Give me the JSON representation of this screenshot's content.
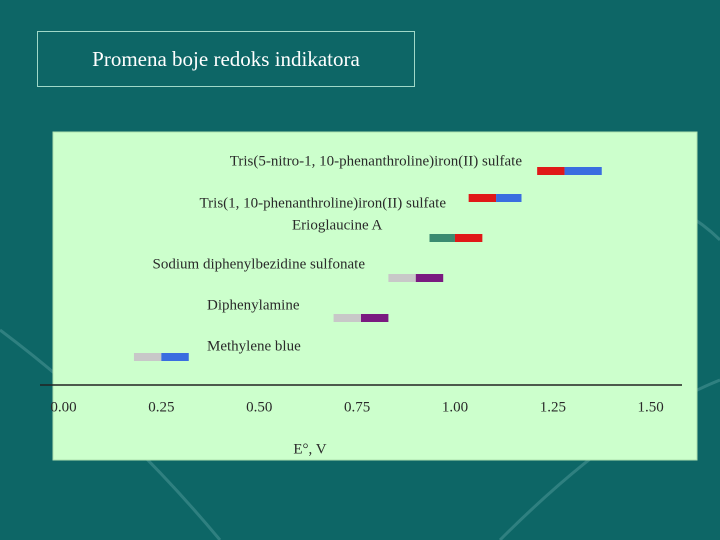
{
  "slide_title": "Promena boje redoks indikatora",
  "chart_data": {
    "type": "range",
    "xlabel": "E°, V",
    "xlim": [
      -0.06,
      1.58
    ],
    "xticks": [
      {
        "value": 0,
        "label": "0.00"
      },
      0.25,
      {
        "value": 0.5,
        "label": "0.50"
      },
      0.75,
      {
        "value": 1,
        "label": "1.00"
      },
      1.25,
      {
        "value": 1.5,
        "label": "1.50"
      }
    ],
    "indicators": [
      {
        "name": "Tris(5-nitro-1, 10-phenanthroline)iron(II) sulfate",
        "start": 1.21,
        "mid": 1.28,
        "end": 1.375,
        "colors": [
          "#e01818",
          "#3a6de0"
        ]
      },
      {
        "name": "Tris(1, 10-phenanthroline)iron(II) sulfate",
        "start": 1.035,
        "mid": 1.105,
        "end": 1.17,
        "colors": [
          "#e01818",
          "#3a6de0"
        ]
      },
      {
        "name": "Erioglaucine A",
        "start": 0.935,
        "mid": 1.0,
        "end": 1.07,
        "colors": [
          "#3a8a70",
          "#e01818"
        ]
      },
      {
        "name": "Sodium diphenylbezidine sulfonate",
        "start": 0.83,
        "mid": 0.9,
        "end": 0.97,
        "colors": [
          "#c8c8c8",
          "#7a1a80"
        ]
      },
      {
        "name": "Diphenylamine",
        "start": 0.69,
        "mid": 0.76,
        "end": 0.83,
        "colors": [
          "#c8c8c8",
          "#7a1a80"
        ]
      },
      {
        "name": "Methylene blue",
        "start": 0.18,
        "mid": 0.25,
        "end": 0.32,
        "colors": [
          "#c8c8c8",
          "#3a6de0"
        ]
      }
    ]
  }
}
